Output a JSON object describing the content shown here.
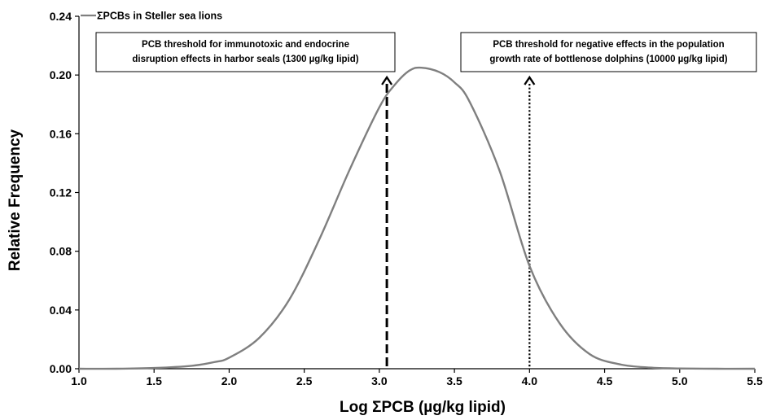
{
  "chart_data": {
    "type": "line",
    "title": "",
    "xlabel": "Log ΣPCB (µg/kg lipid)",
    "ylabel": "Relative Frequency",
    "xlim": [
      1.0,
      5.5
    ],
    "ylim": [
      0.0,
      0.24
    ],
    "xticks": [
      "1.0",
      "1.5",
      "2.0",
      "2.5",
      "3.0",
      "3.5",
      "4.0",
      "4.5",
      "5.0",
      "5.5"
    ],
    "yticks": [
      "0.00",
      "0.04",
      "0.08",
      "0.12",
      "0.16",
      "0.20",
      "0.24"
    ],
    "grid": false,
    "legend_position": "top-left",
    "series": [
      {
        "name": "ΣPCBs in Steller sea lions",
        "color": "#7f7f7f",
        "x": [
          1.0,
          1.25,
          1.5,
          1.75,
          1.9,
          2.0,
          2.2,
          2.4,
          2.6,
          2.8,
          3.0,
          3.1,
          3.2,
          3.28,
          3.4,
          3.5,
          3.6,
          3.8,
          4.0,
          4.2,
          4.4,
          4.6,
          4.8,
          5.0,
          5.25,
          5.5
        ],
        "y": [
          0.0,
          0.0,
          0.0005,
          0.002,
          0.0045,
          0.0075,
          0.021,
          0.047,
          0.088,
          0.135,
          0.178,
          0.193,
          0.203,
          0.205,
          0.202,
          0.195,
          0.182,
          0.135,
          0.07,
          0.031,
          0.01,
          0.003,
          0.0008,
          0.0002,
          0.0,
          0.0
        ]
      }
    ],
    "annotations": [
      {
        "lines": [
          "PCB threshold for immunotoxic and endocrine",
          "disruption  effects  in harbor seals (1300 µg/kg lipid)"
        ],
        "x": 3.05,
        "line_style": "dashed"
      },
      {
        "lines": [
          "PCB threshold for negative effects  in the population",
          "growth rate of bottlenose dolphins (10000 µg/kg lipid)"
        ],
        "x": 4.0,
        "line_style": "dotted"
      }
    ]
  }
}
